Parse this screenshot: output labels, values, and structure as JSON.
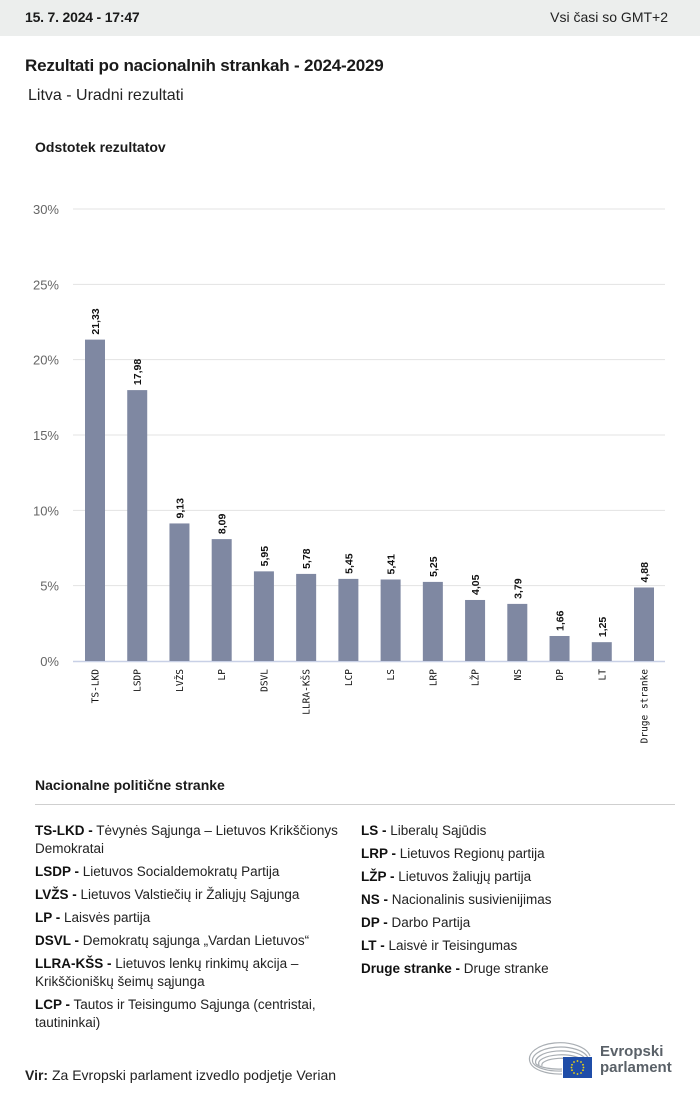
{
  "header": {
    "datetime": "15. 7. 2024 - 17:47",
    "timezone_note": "Vsi časi so GMT+2"
  },
  "title": "Rezultati po nacionalnih strankah - 2024-2029",
  "subtitle": "Litva - Uradni rezultati",
  "chart_data": {
    "type": "bar",
    "title": "Rezultati po nacionalnih strankah - 2024-2029",
    "ylabel": "Odstotek rezultatov",
    "xlabel": "",
    "categories": [
      "TS-LKD",
      "LSDP",
      "LVŽS",
      "LP",
      "DSVL",
      "LLRA-KŠS",
      "LCP",
      "LS",
      "LRP",
      "LŽP",
      "NS",
      "DP",
      "LT",
      "Druge stranke"
    ],
    "values": [
      21.33,
      17.98,
      9.13,
      8.09,
      5.95,
      5.78,
      5.45,
      5.41,
      5.25,
      4.05,
      3.79,
      1.66,
      1.25,
      4.88
    ],
    "value_labels": [
      "21,33",
      "17,98",
      "9,13",
      "8,09",
      "5,95",
      "5,78",
      "5,45",
      "5,41",
      "5,25",
      "4,05",
      "3,79",
      "1,66",
      "1,25",
      "4,88"
    ],
    "ylim": [
      0,
      30
    ],
    "yticks": [
      0,
      5,
      10,
      15,
      20,
      25,
      30
    ],
    "ytick_labels": [
      "0%",
      "5%",
      "10%",
      "15%",
      "20%",
      "25%",
      "30%"
    ],
    "grid": true,
    "bar_color": "#7f88a2",
    "legend": "none"
  },
  "legend": {
    "title": "Nacionalne politične stranke",
    "left": [
      {
        "abbr": "TS-LKD -",
        "name": "Tėvynės Sąjunga – Lietuvos Krikščionys Demokratai"
      },
      {
        "abbr": "LSDP -",
        "name": "Lietuvos Socialdemokratų Partija"
      },
      {
        "abbr": "LVŽS -",
        "name": "Lietuvos Valstiečių ir Žaliųjų Sąjunga"
      },
      {
        "abbr": "LP -",
        "name": "Laisvės partija"
      },
      {
        "abbr": "DSVL -",
        "name": "Demokratų sąjunga „Vardan Lietuvos“"
      },
      {
        "abbr": "LLRA-KŠS -",
        "name": "Lietuvos lenkų rinkimų akcija – Krikščioniškų šeimų sąjunga"
      },
      {
        "abbr": "LCP -",
        "name": "Tautos ir Teisingumo Sąjunga (centristai, tautininkai)"
      }
    ],
    "right": [
      {
        "abbr": "LS -",
        "name": "Liberalų Sąjūdis"
      },
      {
        "abbr": "LRP -",
        "name": "Lietuvos Regionų partija"
      },
      {
        "abbr": "LŽP -",
        "name": "Lietuvos žaliųjų partija"
      },
      {
        "abbr": "NS -",
        "name": "Nacionalinis susivienijimas"
      },
      {
        "abbr": "DP -",
        "name": "Darbo Partija"
      },
      {
        "abbr": "LT -",
        "name": "Laisvė ir Teisingumas"
      },
      {
        "abbr": "Druge stranke -",
        "name": "Druge stranke"
      }
    ]
  },
  "footer": {
    "source_label": "Vir:",
    "source_text": "Za Evropski parlament izvedlo podjetje Verian",
    "logo_line1": "Evropski",
    "logo_line2": "parlament",
    "logo_icon": "european-parliament-hemicycle-eu-flag-icon"
  }
}
